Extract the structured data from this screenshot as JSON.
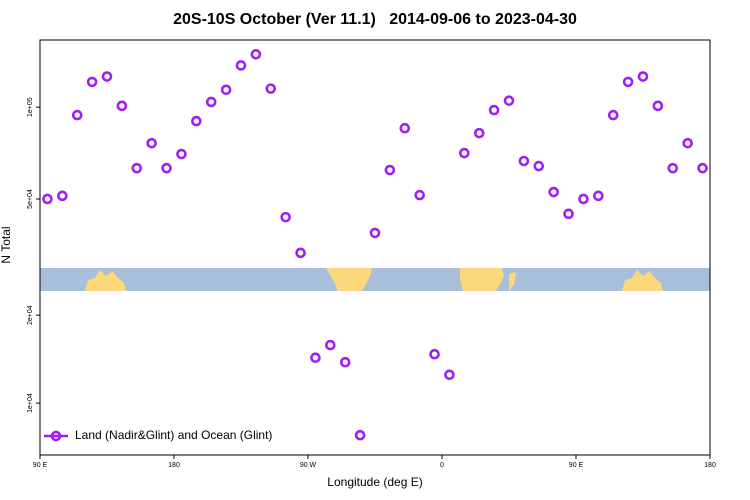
{
  "chart_data": [
    {
      "type": "scatter",
      "title": "20S-10S October (Ver 11.1)   2014-09-06 to 2023-04-30",
      "ylabel": "N Total",
      "log_y": true,
      "xlim": [
        90,
        540
      ],
      "ylim": [
        29700,
        166000
      ],
      "yticks": [
        {
          "value": 50000,
          "label": "5e+04"
        },
        {
          "value": 100000,
          "label": "1e+05"
        }
      ],
      "series": [
        {
          "color": "#a020f0",
          "x": [
            95,
            105,
            115,
            125,
            135,
            145,
            155,
            165,
            175,
            185,
            195,
            205,
            215,
            225,
            235,
            245,
            255,
            265,
            315,
            325,
            335,
            345,
            375,
            385,
            395,
            405,
            415,
            425,
            435,
            445,
            455,
            465,
            475,
            485,
            495,
            505,
            515,
            525,
            535
          ],
          "values": [
            50000,
            51200,
            94200,
            121000,
            126000,
            101000,
            63100,
            76200,
            63100,
            70200,
            90000,
            104000,
            114000,
            137000,
            149000,
            115000,
            43600,
            33300,
            38700,
            62200,
            85300,
            51500,
            70700,
            82200,
            97800,
            105000,
            66600,
            64100,
            52700,
            44700,
            50000,
            51200,
            94200,
            121000,
            126000,
            101000,
            63100,
            76200,
            63100
          ]
        }
      ]
    },
    {
      "type": "scatter",
      "xlabel": "Longitude (deg E)",
      "log_y": true,
      "legend": "lower left",
      "xlim": [
        90,
        540
      ],
      "xticks": [
        {
          "value": 90,
          "label": "90 E"
        },
        {
          "value": 180,
          "label": "180"
        },
        {
          "value": 270,
          "label": "90 W"
        },
        {
          "value": 360,
          "label": "0"
        },
        {
          "value": 450,
          "label": "90 E"
        },
        {
          "value": 540,
          "label": "180"
        }
      ],
      "ylim": [
        6640,
        24200
      ],
      "yticks": [
        {
          "value": 10000,
          "label": "1e+04"
        },
        {
          "value": 20000,
          "label": "2e+04"
        }
      ],
      "series": [
        {
          "name": "Land (Nadir&Glint) and Ocean (Glint)",
          "color": "#a020f0",
          "x": [
            275,
            285,
            295,
            305,
            355,
            365
          ],
          "values": [
            14300,
            15800,
            13800,
            7760,
            14700,
            12500
          ]
        }
      ]
    }
  ]
}
